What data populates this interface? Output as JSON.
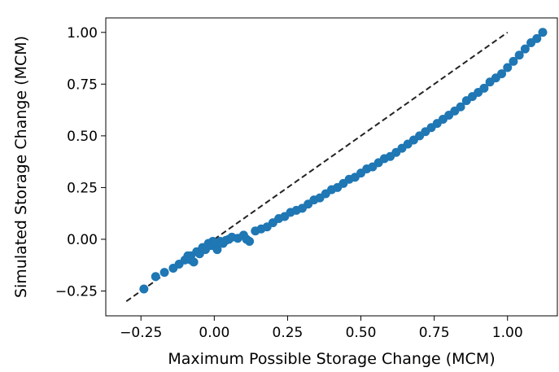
{
  "chart_data": {
    "type": "scatter",
    "title": "",
    "xlabel": "Maximum Possible Storage Change (MCM)",
    "ylabel": "Simulated Storage Change (MCM)",
    "xlim": [
      -0.37,
      1.17
    ],
    "ylim": [
      -0.37,
      1.07
    ],
    "xticks": [
      -0.25,
      0.0,
      0.25,
      0.5,
      0.75,
      1.0
    ],
    "yticks": [
      -0.25,
      0.0,
      0.25,
      0.5,
      0.75,
      1.0
    ],
    "xtick_labels": [
      "−0.25",
      "0.00",
      "0.25",
      "0.50",
      "0.75",
      "1.00"
    ],
    "ytick_labels": [
      "−0.25",
      "0.00",
      "0.25",
      "0.50",
      "0.75",
      "1.00"
    ],
    "grid": false,
    "legend": "none",
    "series": [
      {
        "color": "#1f77b4",
        "marker": "circle",
        "points": [
          [
            -0.24,
            -0.24
          ],
          [
            -0.2,
            -0.18
          ],
          [
            -0.17,
            -0.16
          ],
          [
            -0.14,
            -0.14
          ],
          [
            -0.12,
            -0.12
          ],
          [
            -0.1,
            -0.1
          ],
          [
            -0.08,
            -0.08
          ],
          [
            -0.06,
            -0.06
          ],
          [
            -0.05,
            -0.07
          ],
          [
            -0.04,
            -0.04
          ],
          [
            -0.03,
            -0.05
          ],
          [
            -0.02,
            -0.02
          ],
          [
            -0.01,
            -0.03
          ],
          [
            -0.005,
            -0.01
          ],
          [
            0.0,
            -0.02
          ],
          [
            0.01,
            -0.05
          ],
          [
            0.02,
            -0.01
          ],
          [
            0.03,
            -0.02
          ],
          [
            0.04,
            -0.005
          ],
          [
            -0.08,
            -0.1
          ],
          [
            -0.07,
            -0.11
          ],
          [
            -0.09,
            -0.08
          ],
          [
            0.05,
            0.0
          ],
          [
            0.06,
            0.01
          ],
          [
            0.08,
            0.005
          ],
          [
            0.1,
            0.02
          ],
          [
            0.11,
            0.0
          ],
          [
            0.12,
            -0.01
          ],
          [
            0.14,
            0.04
          ],
          [
            0.16,
            0.05
          ],
          [
            0.18,
            0.06
          ],
          [
            0.2,
            0.08
          ],
          [
            0.22,
            0.1
          ],
          [
            0.24,
            0.11
          ],
          [
            0.26,
            0.13
          ],
          [
            0.28,
            0.14
          ],
          [
            0.3,
            0.15
          ],
          [
            0.32,
            0.17
          ],
          [
            0.34,
            0.19
          ],
          [
            0.36,
            0.2
          ],
          [
            0.38,
            0.22
          ],
          [
            0.4,
            0.24
          ],
          [
            0.42,
            0.25
          ],
          [
            0.44,
            0.27
          ],
          [
            0.46,
            0.29
          ],
          [
            0.48,
            0.3
          ],
          [
            0.5,
            0.32
          ],
          [
            0.52,
            0.34
          ],
          [
            0.54,
            0.35
          ],
          [
            0.56,
            0.37
          ],
          [
            0.58,
            0.39
          ],
          [
            0.6,
            0.4
          ],
          [
            0.62,
            0.42
          ],
          [
            0.64,
            0.44
          ],
          [
            0.66,
            0.46
          ],
          [
            0.68,
            0.48
          ],
          [
            0.7,
            0.5
          ],
          [
            0.72,
            0.52
          ],
          [
            0.74,
            0.54
          ],
          [
            0.76,
            0.56
          ],
          [
            0.78,
            0.58
          ],
          [
            0.8,
            0.6
          ],
          [
            0.82,
            0.62
          ],
          [
            0.84,
            0.64
          ],
          [
            0.86,
            0.67
          ],
          [
            0.88,
            0.69
          ],
          [
            0.9,
            0.71
          ],
          [
            0.92,
            0.73
          ],
          [
            0.94,
            0.76
          ],
          [
            0.96,
            0.78
          ],
          [
            0.98,
            0.8
          ],
          [
            1.0,
            0.83
          ],
          [
            1.02,
            0.86
          ],
          [
            1.04,
            0.89
          ],
          [
            1.06,
            0.92
          ],
          [
            1.08,
            0.95
          ],
          [
            1.1,
            0.97
          ],
          [
            1.12,
            1.0
          ]
        ]
      }
    ],
    "reference_line": {
      "style": "dashed",
      "color": "#222222",
      "points": [
        [
          -0.3,
          -0.3
        ],
        [
          1.0,
          1.0
        ]
      ]
    }
  }
}
